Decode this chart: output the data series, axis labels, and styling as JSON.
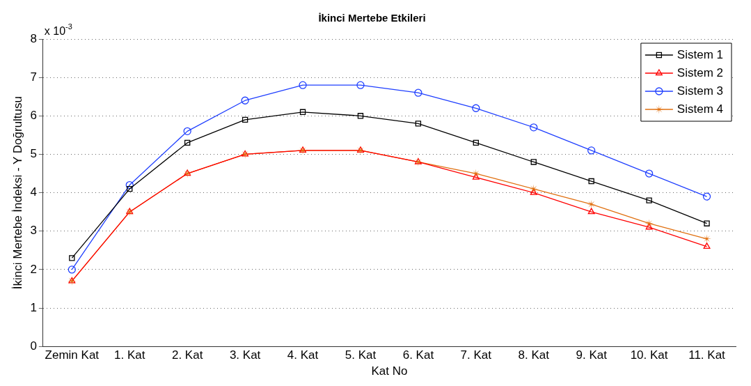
{
  "chart_data": {
    "type": "line",
    "title": "İkinci Mertebe Etkileri",
    "xlabel": "Kat No",
    "ylabel": "İkinci Mertebe İndeksi - Y Doğrultusu",
    "annotations": [
      "x 10$^{-3}$"
    ],
    "categories": [
      "Zemin Kat",
      "1. Kat",
      "2. Kat",
      "3. Kat",
      "4. Kat",
      "5. Kat",
      "6. Kat",
      "7. Kat",
      "8. Kat",
      "9. Kat",
      "10. Kat",
      "11. Kat"
    ],
    "series": [
      {
        "name": "Sistem 1",
        "color": "#000000",
        "marker": "square",
        "values": [
          2.3,
          4.1,
          5.3,
          5.9,
          6.1,
          6.0,
          5.8,
          5.3,
          4.8,
          4.3,
          3.8,
          3.2
        ]
      },
      {
        "name": "Sistem 2",
        "color": "#ff0000",
        "marker": "triangle",
        "values": [
          1.7,
          3.5,
          4.5,
          5.0,
          5.1,
          5.1,
          4.8,
          4.4,
          4.0,
          3.5,
          3.1,
          2.6
        ]
      },
      {
        "name": "Sistem 3",
        "color": "#1f3fff",
        "marker": "circle",
        "values": [
          2.0,
          4.2,
          5.6,
          6.4,
          6.8,
          6.8,
          6.6,
          6.2,
          5.7,
          5.1,
          4.5,
          3.9
        ]
      },
      {
        "name": "Sistem 4",
        "color": "#e07010",
        "marker": "star",
        "values": [
          1.7,
          3.5,
          4.5,
          5.0,
          5.1,
          5.1,
          4.8,
          4.5,
          4.1,
          3.7,
          3.2,
          2.8
        ]
      }
    ],
    "ylim": [
      0,
      8
    ],
    "yticks": [
      0,
      1,
      2,
      3,
      4,
      5,
      6,
      7,
      8
    ],
    "grid": "y",
    "legend": "top right",
    "line_style": "solid"
  }
}
